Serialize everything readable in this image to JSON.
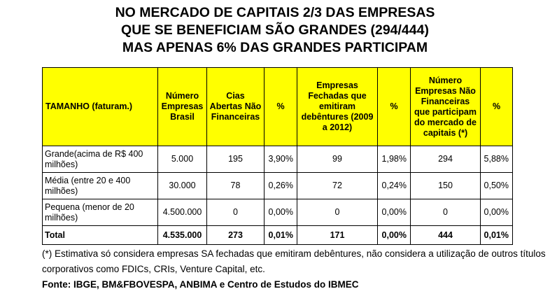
{
  "title": {
    "line1": "NO MERCADO DE CAPITAIS 2/3 DAS EMPRESAS",
    "line2": "QUE SE BENEFICIAM SÃO GRANDES (294/444)",
    "line3": "MAS APENAS 6% DAS GRANDES PARTICIPAM"
  },
  "table": {
    "headers": [
      "TAMANHO (faturam.)",
      "Número Empresas Brasil",
      "Cias Abertas Não Financeiras",
      "%",
      "Empresas Fechadas que emitiram debêntures (2009 a 2012)",
      "%",
      "Número Empresas Não Financeiras que participam do mercado de capitais (*)",
      "%"
    ],
    "rows": [
      [
        "Grande(acima de R$ 400 milhões)",
        "5.000",
        "195",
        "3,90%",
        "99",
        "1,98%",
        "294",
        "5,88%"
      ],
      [
        "Média (entre 20 e 400 milhões)",
        "30.000",
        "78",
        "0,26%",
        "72",
        "0,24%",
        "150",
        "0,50%"
      ],
      [
        "Pequena (menor de 20 milhões)",
        "4.500.000",
        "0",
        "0,00%",
        "0",
        "0,00%",
        "0",
        "0,00%"
      ]
    ],
    "total": [
      "Total",
      "4.535.000",
      "273",
      "0,01%",
      "171",
      "0,00%",
      "444",
      "0,01%"
    ]
  },
  "notes": {
    "footnote": "(*) Estimativa só considera empresas SA fechadas que emitiram debêntures, não considera a utilização de outros títulos corporativos como FDICs, CRIs, Venture Capital, etc.",
    "source": "Fonte: IBGE, BM&FBOVESPA, ANBIMA e Centro de Estudos do IBMEC"
  }
}
